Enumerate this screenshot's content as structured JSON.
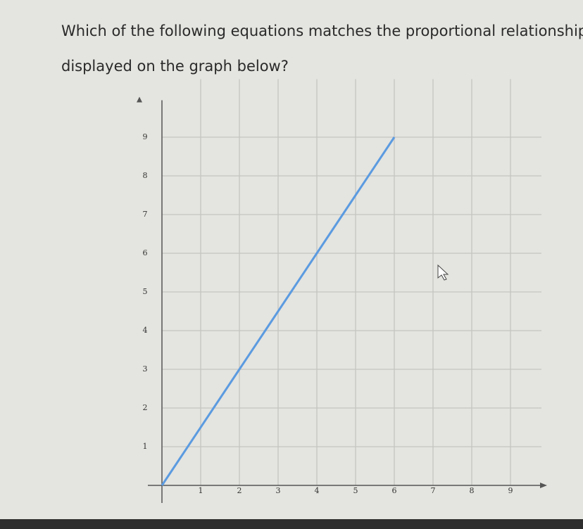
{
  "chart_data": {
    "type": "line",
    "title": "Which of the following equations matches the proportional relationship displayed on the graph below?",
    "x": [
      0,
      2,
      4,
      6
    ],
    "series": [
      {
        "color": "#5b9be0",
        "values": [
          0,
          3,
          6,
          9
        ]
      }
    ],
    "xlim": [
      0,
      9.8
    ],
    "ylim": [
      0,
      10.5
    ],
    "xticks": [
      1,
      2,
      3,
      4,
      5,
      6,
      7,
      8,
      9
    ],
    "yticks": [
      1,
      2,
      3,
      4,
      5,
      6,
      7,
      8,
      9
    ],
    "grid": true
  }
}
